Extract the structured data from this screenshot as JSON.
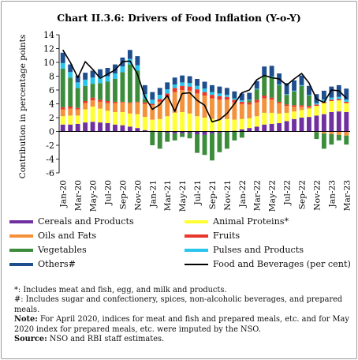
{
  "chart_data": {
    "type": "bar",
    "title": "Chart II.3.6: Drivers of Food Inflation (Y-o-Y)",
    "ylabel": "Contribution in percentage points",
    "ylim": [
      -6,
      14
    ],
    "yticks": [
      -6,
      -4,
      -2,
      0,
      2,
      4,
      6,
      8,
      10,
      12,
      14
    ],
    "xtick_labels": [
      "Jan-20",
      "Mar-20",
      "May-20",
      "Jul-20",
      "Sep-20",
      "Nov-20",
      "Jan-21",
      "Mar-21",
      "May-21",
      "Jul-21",
      "Sep-21",
      "Nov-21",
      "Jan-22",
      "Mar-22",
      "May-22",
      "Jul-22",
      "Sep-22",
      "Nov-22",
      "Jan-23",
      "Mar-23"
    ],
    "categories": [
      "Jan-20",
      "Feb-20",
      "Mar-20",
      "Apr-20",
      "May-20",
      "Jun-20",
      "Jul-20",
      "Aug-20",
      "Sep-20",
      "Oct-20",
      "Nov-20",
      "Dec-20",
      "Jan-21",
      "Feb-21",
      "Mar-21",
      "Apr-21",
      "May-21",
      "Jun-21",
      "Jul-21",
      "Aug-21",
      "Sep-21",
      "Oct-21",
      "Nov-21",
      "Dec-21",
      "Jan-22",
      "Feb-22",
      "Mar-22",
      "Apr-22",
      "May-22",
      "Jun-22",
      "Jul-22",
      "Aug-22",
      "Sep-22",
      "Oct-22",
      "Nov-22",
      "Dec-22",
      "Jan-23",
      "Feb-23",
      "Mar-23"
    ],
    "series": [
      {
        "name": "Cereals and Products",
        "color": "#7030a0",
        "values": [
          1.0,
          1.0,
          1.1,
          1.3,
          1.4,
          1.3,
          1.2,
          1.0,
          0.9,
          0.7,
          0.5,
          0.2,
          0.1,
          0.0,
          -0.2,
          -0.3,
          -0.3,
          -0.2,
          -0.4,
          -0.5,
          -0.3,
          -0.2,
          -0.1,
          0.1,
          0.3,
          0.5,
          0.7,
          1.0,
          1.1,
          1.2,
          1.5,
          1.8,
          2.0,
          2.1,
          2.3,
          2.5,
          2.8,
          2.9,
          2.8
        ]
      },
      {
        "name": "Animal Proteins*",
        "color": "#ffff33",
        "values": [
          1.2,
          1.3,
          1.2,
          1.9,
          2.2,
          2.0,
          1.8,
          1.8,
          1.9,
          1.9,
          2.0,
          1.9,
          1.6,
          1.8,
          2.2,
          2.7,
          2.8,
          2.6,
          2.2,
          2.0,
          1.8,
          1.7,
          1.8,
          1.6,
          1.5,
          1.4,
          1.5,
          1.7,
          1.6,
          1.4,
          1.2,
          1.1,
          1.1,
          1.2,
          1.4,
          1.6,
          1.6,
          1.6,
          1.3
        ]
      },
      {
        "name": "Oils and Fats",
        "color": "#f4913b",
        "values": [
          1.0,
          1.0,
          0.9,
          0.9,
          0.9,
          1.0,
          1.1,
          1.3,
          1.4,
          1.5,
          1.7,
          1.9,
          2.1,
          2.5,
          2.7,
          3.0,
          3.2,
          3.3,
          3.3,
          3.2,
          3.0,
          2.9,
          2.8,
          2.5,
          2.2,
          2.0,
          2.0,
          2.1,
          1.9,
          1.5,
          1.0,
          0.7,
          0.5,
          0.2,
          -0.1,
          -0.3,
          -0.4,
          -0.5,
          -0.6
        ]
      },
      {
        "name": "Fruits",
        "color": "#e8382b",
        "values": [
          0.3,
          0.3,
          0.2,
          0.3,
          0.4,
          0.3,
          0.3,
          0.2,
          0.1,
          0.1,
          0.1,
          0.2,
          0.2,
          0.4,
          0.6,
          0.6,
          0.6,
          0.6,
          0.6,
          0.5,
          0.5,
          0.5,
          0.4,
          0.4,
          0.3,
          0.3,
          0.4,
          0.4,
          0.3,
          0.2,
          0.2,
          0.2,
          0.2,
          0.2,
          0.2,
          0.2,
          0.2,
          0.2,
          0.2
        ]
      },
      {
        "name": "Vegetables",
        "color": "#3c8c3c",
        "values": [
          5.6,
          4.2,
          2.9,
          2.2,
          2.0,
          2.4,
          2.8,
          3.3,
          4.3,
          5.5,
          4.5,
          0.5,
          -2.0,
          -2.5,
          -1.3,
          -1.0,
          -0.5,
          -0.8,
          -2.7,
          -2.9,
          -3.9,
          -2.8,
          -2.4,
          -1.3,
          -0.9,
          0.3,
          1.5,
          2.8,
          3.0,
          2.4,
          1.4,
          2.0,
          2.8,
          1.5,
          -1.0,
          -2.2,
          -1.5,
          -0.8,
          -1.3
        ]
      },
      {
        "name": "Pulses and Products",
        "color": "#29c5ec",
        "values": [
          0.8,
          0.8,
          0.8,
          0.9,
          0.9,
          0.9,
          0.8,
          0.8,
          0.8,
          0.8,
          0.8,
          0.7,
          0.6,
          0.6,
          0.6,
          0.5,
          0.5,
          0.5,
          0.5,
          0.5,
          0.4,
          0.4,
          0.3,
          0.2,
          0.2,
          0.1,
          0.1,
          0.1,
          0.1,
          0.1,
          0.1,
          0.1,
          0.1,
          0.1,
          0.2,
          0.3,
          0.3,
          0.3,
          0.3
        ]
      },
      {
        "name": "Others#",
        "color": "#1f4e8c",
        "values": [
          1.5,
          1.1,
          1.0,
          1.0,
          1.0,
          1.1,
          1.2,
          1.3,
          1.3,
          1.3,
          1.3,
          1.3,
          1.1,
          1.0,
          1.0,
          1.0,
          1.0,
          1.0,
          1.0,
          1.0,
          1.0,
          1.0,
          1.0,
          1.0,
          1.0,
          1.0,
          1.1,
          1.3,
          1.5,
          1.6,
          1.6,
          1.5,
          1.4,
          1.3,
          1.3,
          1.3,
          1.6,
          1.7,
          1.6
        ]
      }
    ],
    "line": {
      "name": "Food and Beverages (per cent)",
      "color": "#000000",
      "values": [
        11.8,
        10.0,
        7.8,
        10.1,
        9.0,
        7.7,
        8.3,
        8.9,
        10.1,
        10.2,
        8.3,
        5.0,
        3.2,
        3.9,
        5.2,
        2.9,
        5.5,
        5.6,
        4.5,
        3.8,
        1.4,
        1.7,
        2.6,
        4.0,
        5.6,
        6.0,
        7.5,
        8.1,
        7.8,
        7.6,
        6.7,
        7.6,
        8.4,
        7.0,
        4.7,
        4.2,
        6.0,
        5.9,
        4.8
      ]
    }
  },
  "legend": [
    {
      "label": "Cereals and Products",
      "color": "#7030a0",
      "kind": "bar"
    },
    {
      "label": "Animal Proteins*",
      "color": "#ffff33",
      "kind": "bar"
    },
    {
      "label": "Oils and Fats",
      "color": "#f4913b",
      "kind": "bar"
    },
    {
      "label": "Fruits",
      "color": "#e8382b",
      "kind": "bar"
    },
    {
      "label": "Vegetables",
      "color": "#3c8c3c",
      "kind": "bar"
    },
    {
      "label": "Pulses and Products",
      "color": "#29c5ec",
      "kind": "bar"
    },
    {
      "label": "Others#",
      "color": "#1f4e8c",
      "kind": "bar"
    },
    {
      "label": "Food and Beverages (per cent)",
      "color": "#000000",
      "kind": "line"
    }
  ],
  "notes": {
    "note1": "*: Includes meat and fish, egg, and milk and products.",
    "note2": "#: Includes sugar and confectionery, spices, non-alcoholic beverages, and prepared meals.",
    "note3_label": "Note:",
    "note3_text": "For April 2020, indices for meat and fish and prepared meals, etc. and for May 2020 index for prepared meals, etc. were imputed by the NSO.",
    "source_label": "Source:",
    "source_text": "NSO and RBI staff estimates."
  }
}
